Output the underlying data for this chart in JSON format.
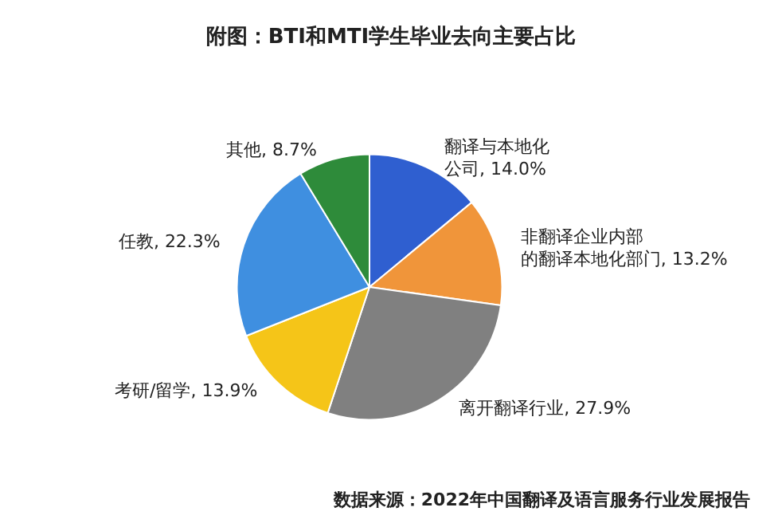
{
  "chart_data": {
    "type": "pie",
    "title": "附图：BTI和MTI学生毕业去向主要占比",
    "categories": [
      "翻译与本地化公司",
      "非翻译企业内部的翻译本地化部门",
      "离开翻译行业",
      "考研/留学",
      "任教",
      "其他"
    ],
    "values": [
      14.0,
      13.2,
      27.9,
      13.9,
      22.3,
      8.7
    ],
    "value_labels": [
      "14.0%",
      "13.2%",
      "27.9%",
      "13.9%",
      "22.3%",
      "8.7%"
    ],
    "colors": [
      "#2f5fd0",
      "#f0953a",
      "#808080",
      "#f5c518",
      "#3f8fe0",
      "#2e8b3a"
    ],
    "legend": false,
    "annotations": [
      "数据来源：2022年中国翻译及语言服务行业发展报告"
    ]
  }
}
